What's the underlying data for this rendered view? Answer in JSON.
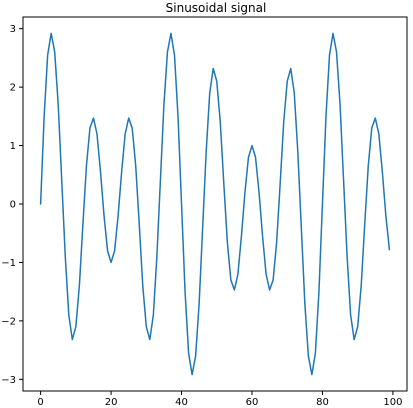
{
  "chart_data": {
    "type": "line",
    "title": "Sinusoidal signal",
    "xlabel": "",
    "ylabel": "",
    "xlim": [
      -5,
      104
    ],
    "ylim": [
      -3.2,
      3.2
    ],
    "x_ticks": [
      0,
      20,
      40,
      60,
      80,
      100
    ],
    "y_ticks": [
      -3,
      -2,
      -1,
      0,
      1,
      2,
      3
    ],
    "x_tick_labels": [
      "0",
      "20",
      "40",
      "60",
      "80",
      "100"
    ],
    "y_tick_labels": [
      "−3",
      "−2",
      "−1",
      "0",
      "1",
      "2",
      "3"
    ],
    "grid": false,
    "legend": "none",
    "line_color": "#1f77b4",
    "series": [
      {
        "x": [
          0,
          1,
          2,
          3,
          4,
          5,
          6,
          7,
          8,
          9,
          10,
          11,
          12,
          13,
          14,
          15,
          16,
          17,
          18,
          19,
          20,
          21,
          22,
          23,
          24,
          25,
          26,
          27,
          28,
          29,
          30,
          31,
          32,
          33,
          34,
          35,
          36,
          37,
          38,
          39,
          40,
          41,
          42,
          43,
          44,
          45,
          46,
          47,
          48,
          49,
          50,
          51,
          52,
          53,
          54,
          55,
          56,
          57,
          58,
          59,
          60,
          61,
          62,
          63,
          64,
          65,
          66,
          67,
          68,
          69,
          70,
          71,
          72,
          73,
          74,
          75,
          76,
          77,
          78,
          79,
          80,
          81,
          82,
          83,
          84,
          85,
          86,
          87,
          88,
          89,
          90,
          91,
          92,
          93,
          94,
          95,
          96,
          97,
          98,
          99
        ],
        "values": [
          0.0,
          1.5,
          2.55,
          2.92,
          2.6,
          1.7,
          0.4,
          -0.9,
          -1.9,
          -2.32,
          -2.1,
          -1.4,
          -0.35,
          0.65,
          1.3,
          1.47,
          1.2,
          0.55,
          -0.2,
          -0.8,
          -1.0,
          -0.8,
          -0.2,
          0.55,
          1.2,
          1.47,
          1.3,
          0.65,
          -0.35,
          -1.4,
          -2.1,
          -2.32,
          -1.9,
          -0.9,
          0.4,
          1.7,
          2.6,
          2.92,
          2.55,
          1.5,
          0.0,
          -1.5,
          -2.55,
          -2.92,
          -2.6,
          -1.7,
          -0.4,
          0.9,
          1.9,
          2.32,
          2.1,
          1.4,
          0.35,
          -0.65,
          -1.3,
          -1.47,
          -1.2,
          -0.55,
          0.2,
          0.8,
          1.0,
          0.8,
          0.2,
          -0.55,
          -1.2,
          -1.47,
          -1.3,
          -0.65,
          0.35,
          1.4,
          2.1,
          2.32,
          1.9,
          0.9,
          -0.4,
          -1.7,
          -2.6,
          -2.92,
          -2.55,
          -1.5,
          0.0,
          1.5,
          2.55,
          2.92,
          2.6,
          1.7,
          0.4,
          -0.9,
          -1.9,
          -2.32,
          -2.1,
          -1.4,
          -0.35,
          0.65,
          1.3,
          1.47,
          1.2,
          0.55,
          -0.2,
          -0.78
        ]
      }
    ]
  }
}
